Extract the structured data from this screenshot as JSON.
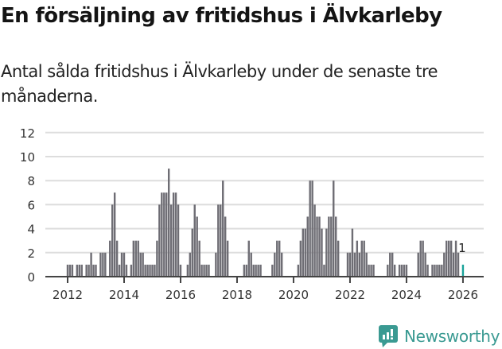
{
  "header": {
    "title": "En försäljning av fritidshus i Älvkarleby",
    "subtitle": "Antal sålda fritidshus i Älvkarleby under de senaste tre månaderna."
  },
  "branding": {
    "logo_text": "Newsworthy",
    "logo_icon": "newsworthy-chart-bubble-icon"
  },
  "colors": {
    "bar": "#6e6d74",
    "highlight": "#1aa39a",
    "grid": "#dddddd",
    "axis": "#444444",
    "brand": "#3a9a92"
  },
  "chart_data": {
    "type": "bar",
    "title": "En försäljning av fritidshus i Älvkarleby",
    "subtitle": "Antal sålda fritidshus i Älvkarleby under de senaste tre månaderna.",
    "xlabel": "",
    "ylabel": "",
    "ylim": [
      0,
      12
    ],
    "yticks": [
      0,
      2,
      4,
      6,
      8,
      10,
      12
    ],
    "xticks": [
      "2012",
      "2014",
      "2016",
      "2018",
      "2020",
      "2022",
      "2024",
      "2026"
    ],
    "grid": true,
    "x_start": "2012-01",
    "x_interval": "month",
    "values": [
      1,
      1,
      1,
      0,
      1,
      1,
      1,
      0,
      1,
      1,
      2,
      1,
      1,
      0,
      2,
      2,
      2,
      0,
      3,
      6,
      7,
      3,
      1,
      2,
      2,
      1,
      0,
      1,
      3,
      3,
      3,
      2,
      2,
      1,
      1,
      1,
      1,
      1,
      3,
      6,
      7,
      7,
      7,
      9,
      6,
      7,
      7,
      6,
      1,
      0,
      0,
      1,
      2,
      4,
      6,
      5,
      3,
      1,
      1,
      1,
      1,
      0,
      0,
      2,
      6,
      6,
      8,
      5,
      3,
      0,
      0,
      0,
      0,
      0,
      0,
      1,
      1,
      3,
      2,
      1,
      1,
      1,
      1,
      0,
      0,
      0,
      0,
      1,
      2,
      3,
      3,
      2,
      0,
      0,
      0,
      0,
      0,
      0,
      1,
      3,
      4,
      4,
      5,
      8,
      8,
      6,
      5,
      5,
      4,
      1,
      4,
      5,
      5,
      8,
      5,
      3,
      0,
      0,
      0,
      2,
      2,
      4,
      2,
      3,
      2,
      3,
      3,
      2,
      1,
      1,
      1,
      0,
      0,
      0,
      0,
      0,
      1,
      2,
      2,
      1,
      0,
      1,
      1,
      1,
      1,
      0,
      0,
      0,
      0,
      2,
      3,
      3,
      2,
      1,
      0,
      1,
      1,
      1,
      1,
      1,
      2,
      3,
      3,
      3,
      2,
      3,
      2,
      0,
      1
    ],
    "highlight": {
      "index": 168,
      "label": "1",
      "period": "2026-01"
    }
  }
}
